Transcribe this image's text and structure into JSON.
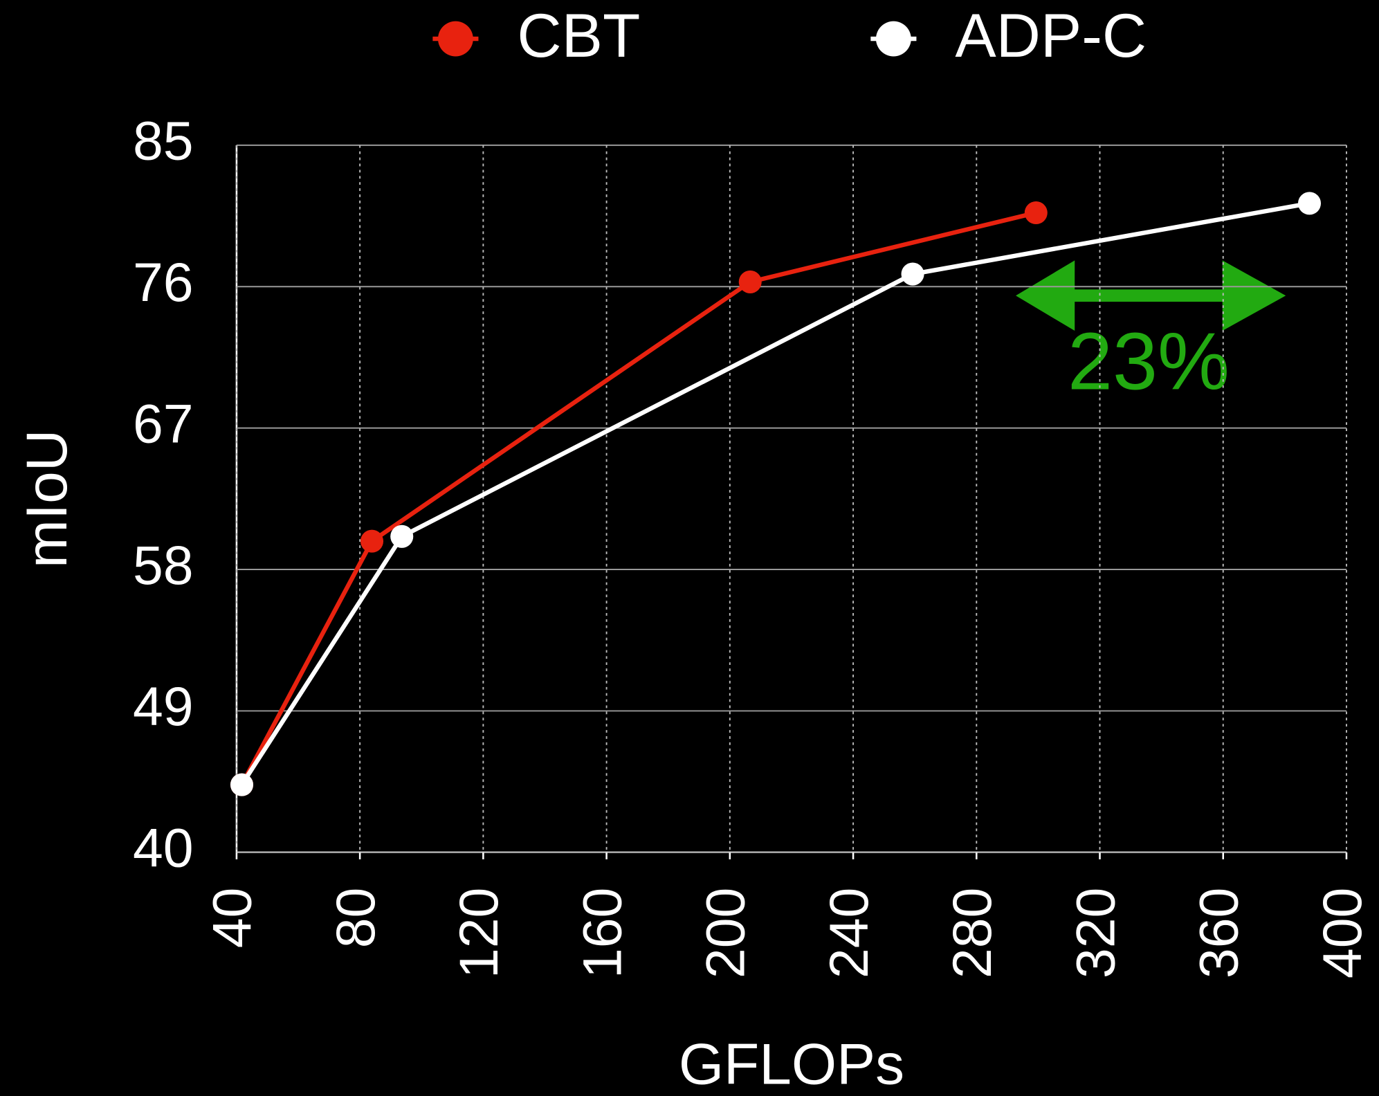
{
  "chart_data": {
    "type": "line",
    "xlabel": "GFLOPs",
    "ylabel": "mIoU",
    "annotation": "23%",
    "annotation_color": "#22aa11",
    "xlim": [
      40,
      400
    ],
    "xticks": [
      40,
      80,
      120,
      160,
      200,
      240,
      280,
      320,
      360,
      400
    ],
    "ylim": [
      40,
      85
    ],
    "yticks": [
      40,
      49,
      58,
      67,
      76,
      85
    ],
    "grid": true,
    "legend": "top",
    "series": [
      {
        "name": "CBT",
        "color": "#e8220f",
        "x": [
          41.7,
          83.9,
          206.6,
          299.3
        ],
        "values": [
          44.3,
          59.8,
          76.3,
          80.7
        ]
      },
      {
        "name": "ADP-C",
        "color": "#ffffff",
        "x": [
          41.7,
          93.6,
          259.3,
          388
        ],
        "values": [
          44.3,
          60.1,
          76.8,
          81.3
        ]
      }
    ]
  }
}
